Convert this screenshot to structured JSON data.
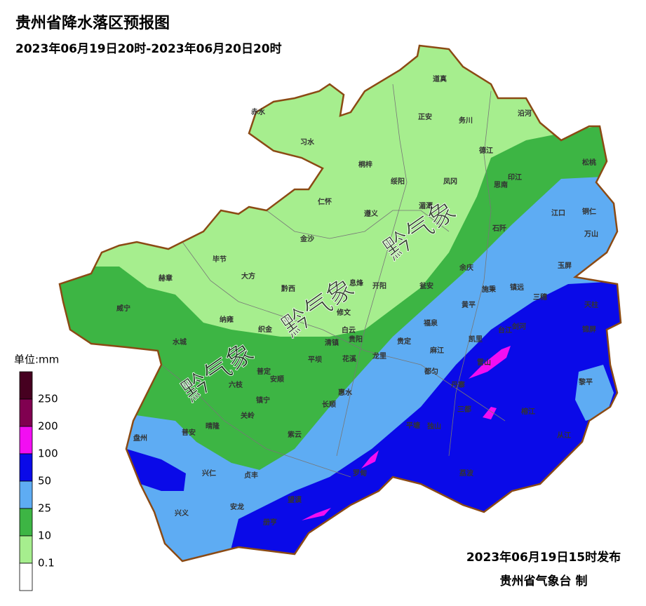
{
  "header": {
    "title": "贵州省降水落区预报图",
    "period": "2023年06月19日20时-2023年06月20日20时"
  },
  "legend": {
    "unit": "单位:mm",
    "levels": [
      0.1,
      10,
      25,
      50,
      100,
      200,
      250
    ],
    "colors": [
      "#ffffff",
      "#a6ee8e",
      "#3db544",
      "#5eacf3",
      "#0a0ae8",
      "#f20ef2",
      "#800050",
      "#460020"
    ]
  },
  "counties": [
    "赤水",
    "习水",
    "道真",
    "正安",
    "务川",
    "沿河",
    "桐梓",
    "绥阳",
    "凤冈",
    "德江",
    "印江",
    "松桃",
    "思南",
    "仁怀",
    "遵义",
    "湄潭",
    "江口",
    "铜仁",
    "万山",
    "石阡",
    "金沙",
    "毕节",
    "大方",
    "赫章",
    "黔西",
    "开阳",
    "瓮安",
    "余庆",
    "施秉",
    "镇远",
    "三穗",
    "天柱",
    "锦屏",
    "玉屏",
    "威宁",
    "纳雍",
    "织金",
    "修文",
    "息烽",
    "黄平",
    "福泉",
    "台江",
    "剑河",
    "凯里",
    "雷山",
    "黎平",
    "榕江",
    "从江",
    "水城",
    "清镇",
    "白云",
    "贵阳",
    "龙里",
    "贵定",
    "麻江",
    "丹寨",
    "都匀",
    "三都",
    "平坝",
    "花溪",
    "普定",
    "安顺",
    "六枝",
    "镇宁",
    "惠水",
    "长顺",
    "关岭",
    "紫云",
    "晴隆",
    "普安",
    "盘州",
    "平塘",
    "独山",
    "荔波",
    "兴仁",
    "贞丰",
    "罗甸",
    "望谟",
    "安龙",
    "兴义",
    "册亨"
  ],
  "watermarks": [
    "黔气象",
    "黔气象",
    "黔气象"
  ],
  "footer": {
    "issued": "2023年06月19日15时发布",
    "issuer": "贵州省气象台 制"
  }
}
